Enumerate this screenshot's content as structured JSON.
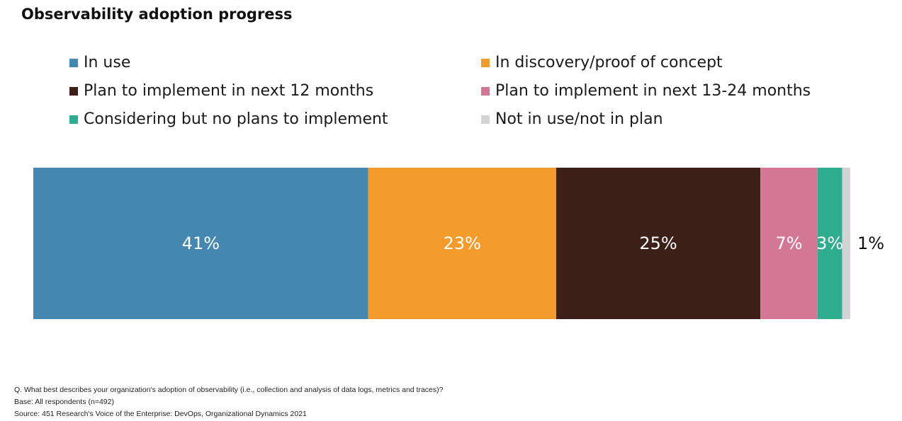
{
  "title": "Observability adoption progress",
  "chart_data": {
    "type": "bar",
    "orientation": "horizontal-stacked-100",
    "categories": [
      ""
    ],
    "series": [
      {
        "name": "In use",
        "values": [
          41
        ],
        "label": "41%",
        "color": "#4487b0"
      },
      {
        "name": "In discovery/proof of concept",
        "values": [
          23
        ],
        "label": "23%",
        "color": "#f39c2c"
      },
      {
        "name": "Plan to implement in next 12 months",
        "values": [
          25
        ],
        "label": "25%",
        "color": "#3c1f16"
      },
      {
        "name": "Plan to implement in next 13-24 months",
        "values": [
          7
        ],
        "label": "7%",
        "color": "#d47795"
      },
      {
        "name": "Considering but no plans to implement",
        "values": [
          3
        ],
        "label": "3%",
        "color": "#2fae8f"
      },
      {
        "name": "Not in use/not in plan",
        "values": [
          1
        ],
        "label": "1%",
        "color": "#d3d3d3"
      }
    ],
    "xlim": [
      0,
      100
    ],
    "grid": false,
    "legend_position": "top"
  },
  "footnotes": {
    "question": "Q. What best describes your organization's adoption of observability (i.e., collection and analysis of data logs, metrics and traces)?",
    "base": "Base: All respondents (n=492)",
    "source": "Source: 451 Research's Voice of the Enterprise: DevOps, Organizational Dynamics 2021"
  }
}
